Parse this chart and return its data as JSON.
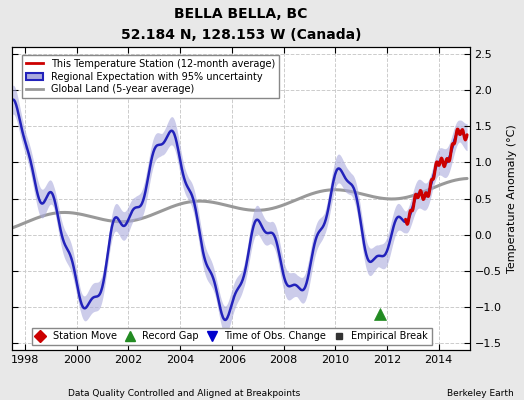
{
  "title": "BELLA BELLA, BC",
  "subtitle": "52.184 N, 128.153 W (Canada)",
  "xlabel_bottom": "Data Quality Controlled and Aligned at Breakpoints",
  "xlabel_right": "Berkeley Earth",
  "ylabel": "Temperature Anomaly (°C)",
  "xlim": [
    1997.5,
    2015.2
  ],
  "ylim": [
    -1.6,
    2.6
  ],
  "yticks": [
    -1.5,
    -1.0,
    -0.5,
    0.0,
    0.5,
    1.0,
    1.5,
    2.0,
    2.5
  ],
  "xticks": [
    1998,
    2000,
    2002,
    2004,
    2006,
    2008,
    2010,
    2012,
    2014
  ],
  "bg_color": "#e8e8e8",
  "plot_bg_color": "#ffffff",
  "regional_color": "#2222bb",
  "regional_fill_color": "#aaaadd",
  "station_color": "#cc0000",
  "global_color": "#999999",
  "record_gap_x": 2011.75,
  "record_gap_y": -1.1
}
